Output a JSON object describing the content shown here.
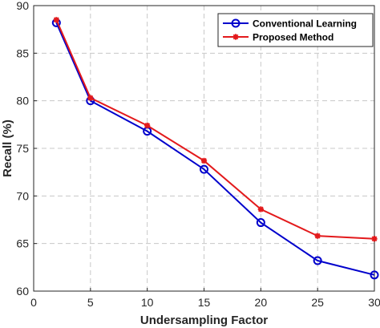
{
  "chart_data": {
    "type": "line",
    "xlabel": "Undersampling Factor",
    "ylabel": "Recall (%)",
    "xlim": [
      0,
      30
    ],
    "ylim": [
      60,
      90
    ],
    "xticks": [
      0,
      5,
      10,
      15,
      20,
      25,
      30
    ],
    "yticks": [
      60,
      65,
      70,
      75,
      80,
      85,
      90
    ],
    "grid": true,
    "legend_position": "top-right",
    "series": [
      {
        "name": "Conventional Learning",
        "color": "#0000cc",
        "marker": "circle",
        "x": [
          2,
          5,
          10,
          15,
          20,
          25,
          30
        ],
        "y": [
          88.2,
          80.0,
          76.8,
          72.8,
          67.2,
          63.2,
          61.7
        ]
      },
      {
        "name": "Proposed Method",
        "color": "#e31a1c",
        "marker": "asterisk",
        "x": [
          2,
          5,
          10,
          15,
          20,
          25,
          30
        ],
        "y": [
          88.5,
          80.3,
          77.4,
          73.7,
          68.6,
          65.8,
          65.5
        ]
      }
    ]
  }
}
